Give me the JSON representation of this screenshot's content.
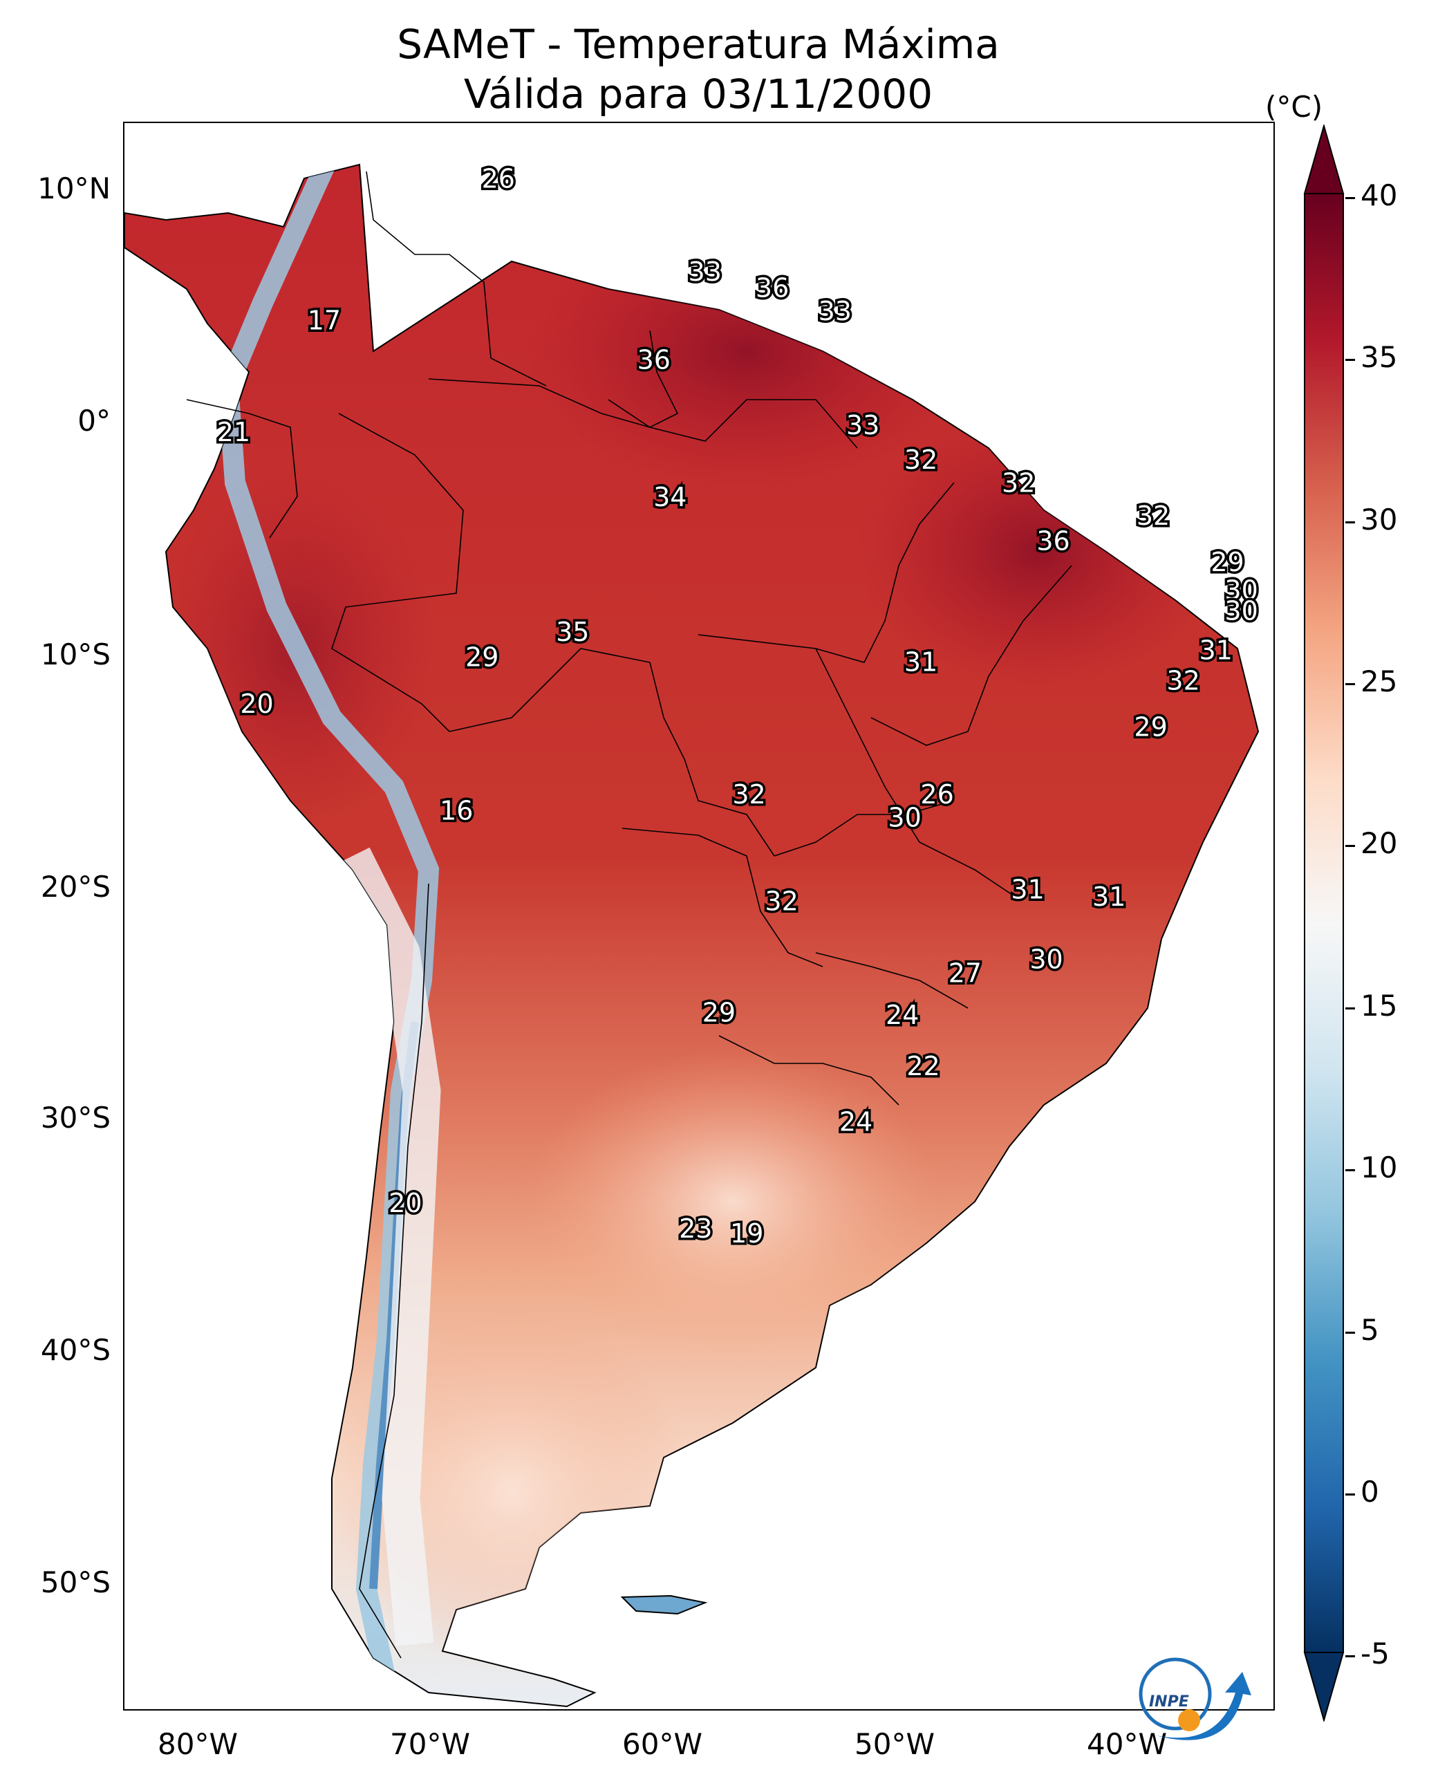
{
  "title": {
    "line1": "SAMeT - Temperatura Máxima",
    "line2": "Válida para 03/11/2000"
  },
  "axes": {
    "lat_labels": [
      "10°N",
      "0°",
      "10°S",
      "20°S",
      "30°S",
      "40°S",
      "50°S"
    ],
    "lon_labels": [
      "80°W",
      "70°W",
      "60°W",
      "50°W",
      "40°W"
    ]
  },
  "colorbar": {
    "unit": "(°C)",
    "ticks": [
      "40",
      "35",
      "30",
      "25",
      "20",
      "15",
      "10",
      "5",
      "0",
      "-5"
    ],
    "min": -5,
    "max": 40,
    "colors": [
      "#053061",
      "#2166ac",
      "#4393c3",
      "#92c5de",
      "#d1e5f0",
      "#f7f7f7",
      "#fddbc7",
      "#f4a582",
      "#d6604d",
      "#b2182b",
      "#67001f"
    ]
  },
  "temperature_labels": [
    {
      "value": "26",
      "lon": -66.8,
      "lat": 10.6
    },
    {
      "value": "17",
      "lon": -74.3,
      "lat": 4.5
    },
    {
      "value": "21",
      "lon": -78.2,
      "lat": -0.3
    },
    {
      "value": "33",
      "lon": -57.9,
      "lat": 6.6
    },
    {
      "value": "36",
      "lon": -55.0,
      "lat": 5.9
    },
    {
      "value": "33",
      "lon": -52.3,
      "lat": 4.9
    },
    {
      "value": "36",
      "lon": -60.1,
      "lat": 2.8
    },
    {
      "value": "33",
      "lon": -51.1,
      "lat": 0.0
    },
    {
      "value": "32",
      "lon": -48.6,
      "lat": -1.5
    },
    {
      "value": "32",
      "lon": -44.4,
      "lat": -2.5
    },
    {
      "value": "32",
      "lon": -38.6,
      "lat": -3.9
    },
    {
      "value": "34",
      "lon": -59.4,
      "lat": -3.1
    },
    {
      "value": "36",
      "lon": -42.9,
      "lat": -5.0
    },
    {
      "value": "29",
      "lon": -35.4,
      "lat": -5.9
    },
    {
      "value": "30",
      "lon": -34.8,
      "lat": -7.1
    },
    {
      "value": "30",
      "lon": -34.8,
      "lat": -8.0
    },
    {
      "value": "35",
      "lon": -63.6,
      "lat": -8.9
    },
    {
      "value": "29",
      "lon": -67.5,
      "lat": -10.0
    },
    {
      "value": "31",
      "lon": -48.6,
      "lat": -10.2
    },
    {
      "value": "31",
      "lon": -35.9,
      "lat": -9.7
    },
    {
      "value": "32",
      "lon": -37.3,
      "lat": -11.0
    },
    {
      "value": "20",
      "lon": -77.2,
      "lat": -12.0
    },
    {
      "value": "29",
      "lon": -38.7,
      "lat": -13.0
    },
    {
      "value": "32",
      "lon": -56.0,
      "lat": -15.9
    },
    {
      "value": "26",
      "lon": -47.9,
      "lat": -15.9
    },
    {
      "value": "30",
      "lon": -49.3,
      "lat": -16.9
    },
    {
      "value": "16",
      "lon": -68.6,
      "lat": -16.6
    },
    {
      "value": "31",
      "lon": -44.0,
      "lat": -20.0
    },
    {
      "value": "31",
      "lon": -40.5,
      "lat": -20.3
    },
    {
      "value": "32",
      "lon": -54.6,
      "lat": -20.5
    },
    {
      "value": "30",
      "lon": -43.2,
      "lat": -23.0
    },
    {
      "value": "27",
      "lon": -46.7,
      "lat": -23.6
    },
    {
      "value": "29",
      "lon": -57.3,
      "lat": -25.3
    },
    {
      "value": "24",
      "lon": -49.4,
      "lat": -25.4
    },
    {
      "value": "22",
      "lon": -48.5,
      "lat": -27.6
    },
    {
      "value": "24",
      "lon": -51.4,
      "lat": -30.0
    },
    {
      "value": "20",
      "lon": -70.8,
      "lat": -33.5
    },
    {
      "value": "23",
      "lon": -58.3,
      "lat": -34.6
    },
    {
      "value": "19",
      "lon": -56.1,
      "lat": -34.8
    }
  ],
  "logo": {
    "text": "INPE"
  }
}
